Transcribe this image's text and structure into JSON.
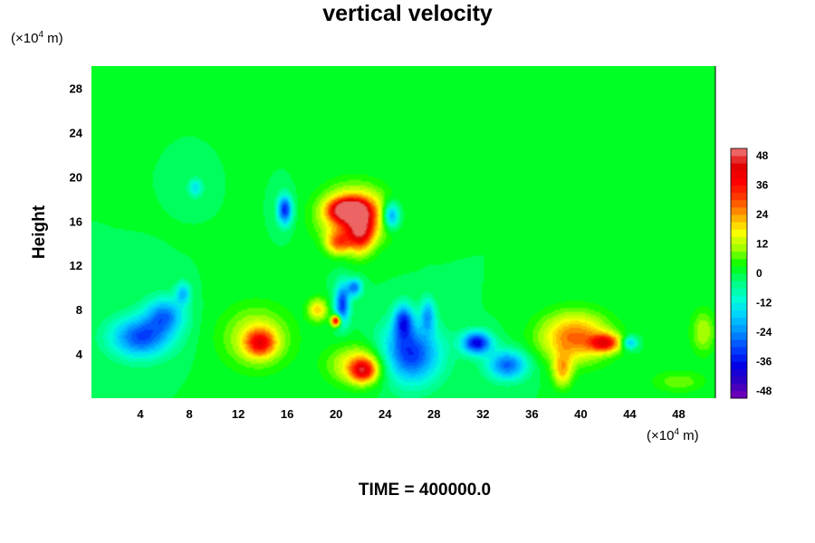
{
  "chart_data": {
    "type": "heatmap",
    "title": "vertical velocity",
    "ylabel": "Height",
    "xlabel": "",
    "x_unit": "(×10",
    "x_unit_exp": "4",
    "x_unit_suffix": " m)",
    "y_unit": "(×10",
    "y_unit_exp": "4",
    "y_unit_suffix": " m)",
    "footer": "TIME = 400000.0",
    "xlim": [
      0,
      51
    ],
    "ylim": [
      0,
      30
    ],
    "xticks": [
      4,
      8,
      12,
      16,
      20,
      24,
      28,
      32,
      36,
      40,
      44,
      48
    ],
    "yticks": [
      4,
      8,
      12,
      16,
      20,
      24,
      28
    ],
    "colorbar": {
      "range": [
        -51,
        51
      ],
      "ticks": [
        48,
        36,
        24,
        12,
        0,
        -12,
        -24,
        -36,
        -48
      ],
      "levels": 34,
      "colors": [
        "#7a00b4",
        "#3000c0",
        "#0000e6",
        "#0044ff",
        "#0090ff",
        "#00d2ff",
        "#00ffd2",
        "#00ff80",
        "#00ff00",
        "#a0ff00",
        "#ffff00",
        "#ffa000",
        "#ff4000",
        "#ff0000",
        "#e00000",
        "#f08080"
      ]
    },
    "background_value": 0,
    "features": [
      {
        "kind": "blob",
        "x": 21.5,
        "y": 16.5,
        "rx": 2.6,
        "ry": 2.4,
        "value": 35
      },
      {
        "kind": "blob",
        "x": 21.0,
        "y": 17.0,
        "rx": 1.4,
        "ry": 0.9,
        "value": 45
      },
      {
        "kind": "blob",
        "x": 22.0,
        "y": 15.0,
        "rx": 1.0,
        "ry": 1.8,
        "value": 30
      },
      {
        "kind": "blob",
        "x": 20.2,
        "y": 14.0,
        "rx": 1.0,
        "ry": 1.0,
        "value": 22
      },
      {
        "kind": "blob",
        "x": 15.8,
        "y": 17.0,
        "rx": 0.6,
        "ry": 1.3,
        "value": -34
      },
      {
        "kind": "blob",
        "x": 24.5,
        "y": 16.5,
        "rx": 0.7,
        "ry": 1.2,
        "value": -28
      },
      {
        "kind": "blob",
        "x": 8.5,
        "y": 19.0,
        "rx": 0.6,
        "ry": 0.8,
        "value": -15
      },
      {
        "kind": "blob",
        "x": 4.0,
        "y": 5.5,
        "rx": 2.4,
        "ry": 1.8,
        "value": -30
      },
      {
        "kind": "blob",
        "x": 6.0,
        "y": 7.5,
        "rx": 1.6,
        "ry": 1.6,
        "value": -24
      },
      {
        "kind": "blob",
        "x": 7.5,
        "y": 9.5,
        "rx": 0.6,
        "ry": 1.0,
        "value": -18
      },
      {
        "kind": "blob",
        "x": 13.5,
        "y": 5.5,
        "rx": 2.8,
        "ry": 2.8,
        "value": 15
      },
      {
        "kind": "blob",
        "x": 13.8,
        "y": 5.0,
        "rx": 1.2,
        "ry": 1.2,
        "value": 28
      },
      {
        "kind": "blob",
        "x": 22.0,
        "y": 3.0,
        "rx": 2.5,
        "ry": 1.8,
        "value": 20
      },
      {
        "kind": "blob",
        "x": 22.2,
        "y": 2.5,
        "rx": 1.0,
        "ry": 1.0,
        "value": 30
      },
      {
        "kind": "blob",
        "x": 18.5,
        "y": 8.0,
        "rx": 0.8,
        "ry": 1.0,
        "value": 20
      },
      {
        "kind": "blob",
        "x": 20.5,
        "y": 8.5,
        "rx": 0.6,
        "ry": 1.8,
        "value": -32
      },
      {
        "kind": "blob",
        "x": 20.0,
        "y": 7.0,
        "rx": 0.4,
        "ry": 0.5,
        "value": 45
      },
      {
        "kind": "blob",
        "x": 21.5,
        "y": 10.0,
        "rx": 0.6,
        "ry": 0.8,
        "value": -26
      },
      {
        "kind": "blob",
        "x": 26.0,
        "y": 4.0,
        "rx": 2.4,
        "ry": 2.6,
        "value": -34
      },
      {
        "kind": "blob",
        "x": 25.5,
        "y": 7.0,
        "rx": 0.8,
        "ry": 1.5,
        "value": -28
      },
      {
        "kind": "blob",
        "x": 27.5,
        "y": 7.5,
        "rx": 0.6,
        "ry": 1.5,
        "value": -20
      },
      {
        "kind": "blob",
        "x": 31.5,
        "y": 5.0,
        "rx": 1.2,
        "ry": 1.0,
        "value": -38
      },
      {
        "kind": "blob",
        "x": 34.0,
        "y": 3.0,
        "rx": 1.6,
        "ry": 1.3,
        "value": -28
      },
      {
        "kind": "blob",
        "x": 39.5,
        "y": 5.5,
        "rx": 2.8,
        "ry": 2.2,
        "value": 28
      },
      {
        "kind": "blob",
        "x": 42.0,
        "y": 5.0,
        "rx": 1.2,
        "ry": 0.8,
        "value": 32
      },
      {
        "kind": "blob",
        "x": 38.5,
        "y": 2.5,
        "rx": 0.8,
        "ry": 1.5,
        "value": 20
      },
      {
        "kind": "blob",
        "x": 44.0,
        "y": 5.0,
        "rx": 0.6,
        "ry": 0.6,
        "value": -20
      },
      {
        "kind": "blob",
        "x": 50.0,
        "y": 6.0,
        "rx": 1.0,
        "ry": 2.0,
        "value": 12
      },
      {
        "kind": "blob",
        "x": 48.0,
        "y": 1.5,
        "rx": 2.2,
        "ry": 1.0,
        "value": 8
      }
    ]
  }
}
